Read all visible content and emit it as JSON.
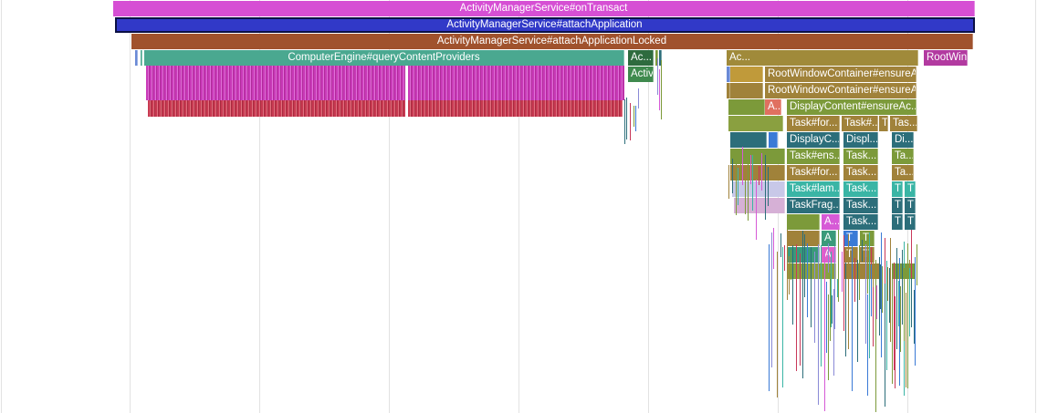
{
  "trace": {
    "selected_slice": "ActivityManagerService#attachApplication",
    "slices": [
      {
        "text": "ActivityManagerService#onTransact",
        "color": "#d64fd4"
      },
      {
        "text": "ActivityManagerService#attachApplication",
        "color": "#3139c8"
      },
      {
        "text": "ActivityManagerService#attachApplicationLocked",
        "color": "#a0522d"
      },
      {
        "text": "ComputerEngine#queryContentProviders",
        "color": "#4aa890"
      },
      {
        "text": "Ac...",
        "color": "#2e6b3e"
      },
      {
        "text": "Ac...",
        "color": "#a08a3a"
      },
      {
        "text": "RootWindowContainer#attachApplicat...",
        "color": "#b23aa0"
      },
      {
        "text": "Activi...",
        "color": "#3f8a4e"
      },
      {
        "text": "RootWindowContainer#ensureA...",
        "color": "#a0823a"
      },
      {
        "text": "RootWindowContainer#ensureA...",
        "color": "#a0823a"
      },
      {
        "text": "A...",
        "color": "#e07060"
      },
      {
        "text": "DisplayContent#ensureAc...",
        "color": "#7c9a3a"
      },
      {
        "text": "Task#for...",
        "color": "#a0823a"
      },
      {
        "text": "Task#...",
        "color": "#a0823a"
      },
      {
        "text": "T",
        "color": "#a0823a"
      },
      {
        "text": "Tas...",
        "color": "#a0823a"
      },
      {
        "text": "DisplayC...",
        "color": "#2c6e7a"
      },
      {
        "text": "Displ...",
        "color": "#2c6e7a"
      },
      {
        "text": "Di...",
        "color": "#2c6e7a"
      },
      {
        "text": "Task#ens...",
        "color": "#7c9a3a"
      },
      {
        "text": "Task...",
        "color": "#7c9a3a"
      },
      {
        "text": "Ta...",
        "color": "#7c9a3a"
      },
      {
        "text": "Task#for...",
        "color": "#a0823a"
      },
      {
        "text": "Task...",
        "color": "#a0823a"
      },
      {
        "text": "Ta...",
        "color": "#a0823a"
      },
      {
        "text": "Task#lam...",
        "color": "#3ab5a5"
      },
      {
        "text": "Task...",
        "color": "#3ab5a5"
      },
      {
        "text": "T",
        "color": "#3ab5a5"
      },
      {
        "text": "T",
        "color": "#3ab5a5"
      },
      {
        "text": "TaskFrag...",
        "color": "#2c6e7a"
      },
      {
        "text": "Task...",
        "color": "#2c6e7a"
      },
      {
        "text": "T",
        "color": "#2c6e7a"
      },
      {
        "text": "T",
        "color": "#2c6e7a"
      },
      {
        "text": "A...",
        "color": "#d65ad6"
      },
      {
        "text": "Task...",
        "color": "#2c6e7a"
      },
      {
        "text": "T",
        "color": "#2c6e7a"
      },
      {
        "text": "T",
        "color": "#2c6e7a"
      },
      {
        "text": "A",
        "color": "#3a9a7a"
      },
      {
        "text": "T",
        "color": "#3a7ad6"
      },
      {
        "text": "T",
        "color": "#7c9a3a"
      },
      {
        "text": "A",
        "color": "#e060c8"
      },
      {
        "text": "T",
        "color": "#a0823a"
      },
      {
        "text": "T",
        "color": "#a0823a"
      }
    ]
  }
}
